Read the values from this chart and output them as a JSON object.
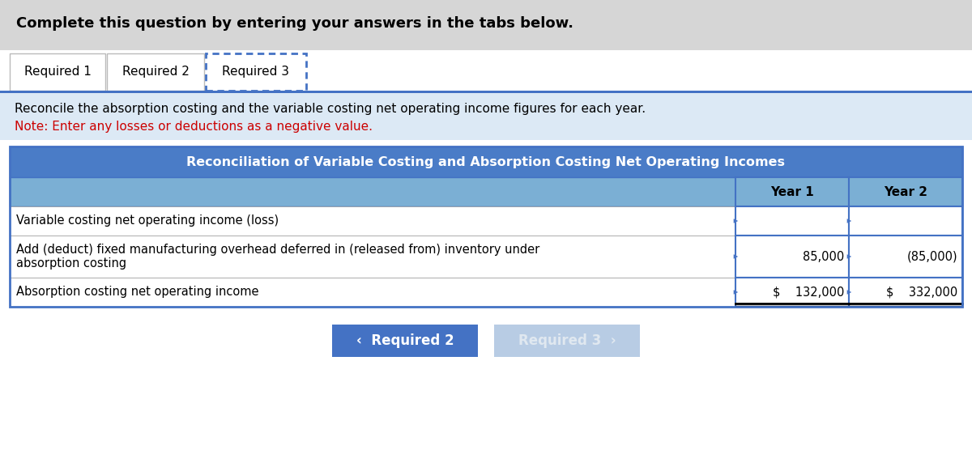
{
  "header_text": "Complete this question by entering your answers in the tabs below.",
  "header_bg": "#d6d6d6",
  "tab1": "Required 1",
  "tab2": "Required 2",
  "tab3": "Required 3",
  "instruction_text": "Reconcile the absorption costing and the variable costing net operating income figures for each year.",
  "note_text": "Note: Enter any losses or deductions as a negative value.",
  "instruction_bg": "#dce9f5",
  "table_title": "Reconciliation of Variable Costing and Absorption Costing Net Operating Incomes",
  "table_header_bg": "#4a7cc7",
  "col_header_bg": "#7bafd4",
  "col_year1": "Year 1",
  "col_year2": "Year 2",
  "row1_label": "Variable costing net operating income (loss)",
  "row1_year1": "",
  "row1_year2": "",
  "row2_label_l1": "Add (deduct) fixed manufacturing overhead deferred in (released from) inventory under",
  "row2_label_l2": "absorption costing",
  "row2_year1": "85,000",
  "row2_year2": "(85,000)",
  "row3_label": "Absorption costing net operating income",
  "row3_year1": "$    132,000",
  "row3_year2": "$    332,000",
  "table_border": "#4472c4",
  "btn1_text": "‹  Required 2",
  "btn1_bg": "#4472c4",
  "btn1_fg": "#ffffff",
  "btn2_text": "Required 3  ›",
  "btn2_bg": "#b8cce4",
  "btn2_fg": "#e0e8f0",
  "bg_color": "#ffffff",
  "outer_bg": "#f2f2f2",
  "fig_w": 12.0,
  "fig_h": 5.56,
  "dpi": 100
}
